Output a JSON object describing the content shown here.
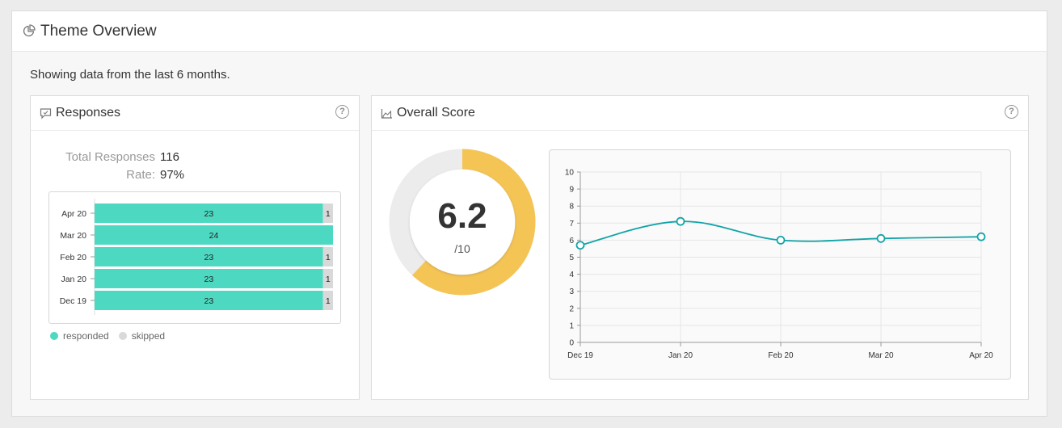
{
  "header": {
    "title": "Theme Overview",
    "icon": "pie-chart-icon"
  },
  "subtitle": "Showing data from the last 6 months.",
  "responses": {
    "title": "Responses",
    "icon": "chat-icon",
    "help": "?",
    "total_label": "Total Responses",
    "total_value": "116",
    "rate_label": "Rate:",
    "rate_value": "97%",
    "legend": [
      {
        "label": "responded",
        "color": "#4dd9c1"
      },
      {
        "label": "skipped",
        "color": "#d9d9d9"
      }
    ]
  },
  "score": {
    "title": "Overall Score",
    "icon": "area-chart-icon",
    "help": "?",
    "value": "6.2",
    "max_label": "/10",
    "fraction": 0.62,
    "colors": {
      "fill": "#f4c455",
      "track": "#ececec"
    }
  },
  "chart_data": [
    {
      "type": "bar",
      "stacked": true,
      "orientation": "horizontal",
      "categories": [
        "Apr 20",
        "Mar 20",
        "Feb 20",
        "Jan 20",
        "Dec 19"
      ],
      "series": [
        {
          "name": "responded",
          "values": [
            23,
            24,
            23,
            23,
            23
          ],
          "color": "#4dd9c1"
        },
        {
          "name": "skipped",
          "values": [
            1,
            0,
            1,
            1,
            1
          ],
          "color": "#d9d9d9"
        }
      ],
      "xlim": [
        0,
        24
      ]
    },
    {
      "type": "line",
      "x": [
        "Dec 19",
        "Jan 20",
        "Feb 20",
        "Mar 20",
        "Apr 20"
      ],
      "values": [
        5.7,
        7.1,
        6.0,
        6.1,
        6.2
      ],
      "ylim": [
        0,
        10
      ],
      "yticks": [
        "0",
        "1",
        "2",
        "3",
        "4",
        "5",
        "6",
        "7",
        "8",
        "9",
        "10"
      ],
      "color": "#12a4a8",
      "grid": true
    }
  ]
}
